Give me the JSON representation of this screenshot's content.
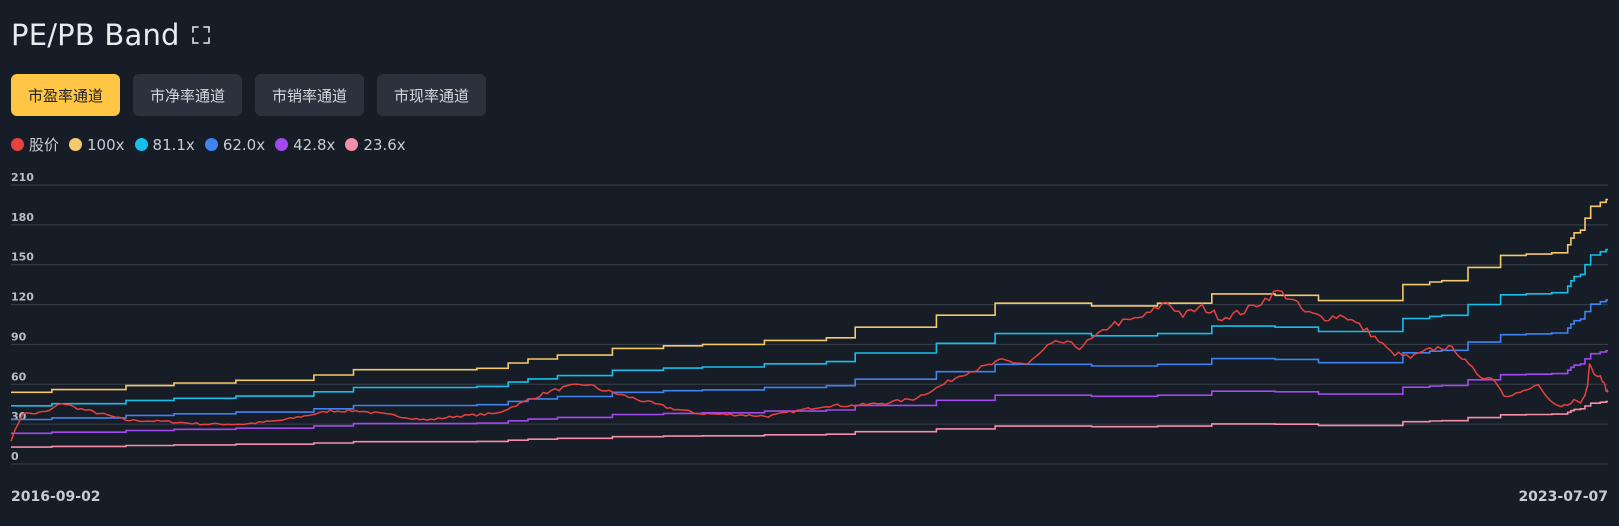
{
  "header": {
    "title": "PE/PB Band"
  },
  "tabs": [
    {
      "label": "市盈率通道",
      "active": true
    },
    {
      "label": "市净率通道",
      "active": false
    },
    {
      "label": "市销率通道",
      "active": false
    },
    {
      "label": "市现率通道",
      "active": false
    }
  ],
  "colors": {
    "background": "#161d27",
    "grid": "#3a414c",
    "active_tab": "#ffc545",
    "price": "#e8423f",
    "b100": "#f5c86a",
    "b81": "#16c0ea",
    "b62": "#3f83f0",
    "b43": "#a249ef",
    "b24": "#f58ea8"
  },
  "chart_data": {
    "type": "line",
    "x_start": "2016-09-02",
    "x_end": "2023-07-07",
    "ylim": [
      0,
      210
    ],
    "yticks": [
      0,
      30,
      60,
      90,
      120,
      150,
      180,
      210
    ],
    "legend": [
      {
        "name": "股价",
        "color": "#e8423f"
      },
      {
        "name": "100x",
        "color": "#f5c86a"
      },
      {
        "name": "81.1x",
        "color": "#16c0ea"
      },
      {
        "name": "62.0x",
        "color": "#3f83f0"
      },
      {
        "name": "42.8x",
        "color": "#a249ef"
      },
      {
        "name": "23.6x",
        "color": "#f58ea8"
      }
    ],
    "band_100x_steps": [
      [
        "2016-09-02",
        54
      ],
      [
        "2016-11-05",
        56
      ],
      [
        "2017-03-01",
        59
      ],
      [
        "2017-05-15",
        61
      ],
      [
        "2017-08-20",
        63
      ],
      [
        "2017-12-20",
        67
      ],
      [
        "2018-02-20",
        71
      ],
      [
        "2018-09-01",
        72
      ],
      [
        "2018-10-20",
        76
      ],
      [
        "2018-11-20",
        79
      ],
      [
        "2019-01-05",
        82
      ],
      [
        "2019-04-01",
        87
      ],
      [
        "2019-06-20",
        89
      ],
      [
        "2019-08-20",
        90
      ],
      [
        "2019-11-25",
        93
      ],
      [
        "2020-03-01",
        95
      ],
      [
        "2020-04-15",
        103
      ],
      [
        "2020-08-20",
        112
      ],
      [
        "2020-11-20",
        121
      ],
      [
        "2021-04-20",
        119
      ],
      [
        "2021-08-01",
        121
      ],
      [
        "2021-10-25",
        128
      ],
      [
        "2022-02-01",
        127
      ],
      [
        "2022-04-10",
        123
      ],
      [
        "2022-08-20",
        135
      ],
      [
        "2022-10-01",
        137
      ],
      [
        "2022-10-20",
        138
      ],
      [
        "2022-11-30",
        148
      ],
      [
        "2023-01-20",
        157
      ],
      [
        "2023-03-01",
        158
      ],
      [
        "2023-04-10",
        159
      ],
      [
        "2023-05-05",
        165
      ],
      [
        "2023-05-10",
        170
      ],
      [
        "2023-05-15",
        174
      ],
      [
        "2023-05-25",
        176
      ],
      [
        "2023-06-01",
        185
      ],
      [
        "2023-06-10",
        194
      ],
      [
        "2023-06-25",
        197
      ],
      [
        "2023-07-04",
        199
      ],
      [
        "2023-07-07",
        199
      ]
    ],
    "price": [
      [
        "2016-09-02",
        18
      ],
      [
        "2016-09-20",
        38
      ],
      [
        "2016-10-10",
        38
      ],
      [
        "2016-11-01",
        40
      ],
      [
        "2016-11-20",
        46
      ],
      [
        "2016-12-15",
        42
      ],
      [
        "2017-01-20",
        38
      ],
      [
        "2017-03-01",
        33
      ],
      [
        "2017-05-01",
        32
      ],
      [
        "2017-07-01",
        30
      ],
      [
        "2017-09-01",
        30
      ],
      [
        "2017-11-01",
        33
      ],
      [
        "2018-01-15",
        40
      ],
      [
        "2018-03-01",
        40
      ],
      [
        "2018-05-01",
        36
      ],
      [
        "2018-06-15",
        33
      ],
      [
        "2018-08-01",
        36
      ],
      [
        "2018-10-01",
        38
      ],
      [
        "2018-11-20",
        48
      ],
      [
        "2018-12-20",
        54
      ],
      [
        "2019-01-20",
        58
      ],
      [
        "2019-02-20",
        60
      ],
      [
        "2019-03-15",
        56
      ],
      [
        "2019-04-15",
        52
      ],
      [
        "2019-05-15",
        48
      ],
      [
        "2019-07-01",
        42
      ],
      [
        "2019-08-15",
        38
      ],
      [
        "2019-10-15",
        37
      ],
      [
        "2019-12-01",
        36
      ],
      [
        "2020-01-15",
        40
      ],
      [
        "2020-03-01",
        44
      ],
      [
        "2020-04-15",
        44
      ],
      [
        "2020-06-01",
        46
      ],
      [
        "2020-07-15",
        49
      ],
      [
        "2020-08-20",
        57
      ],
      [
        "2020-10-01",
        68
      ],
      [
        "2020-11-15",
        75
      ],
      [
        "2020-12-01",
        78
      ],
      [
        "2021-01-10",
        75
      ],
      [
        "2021-02-10",
        88
      ],
      [
        "2021-03-01",
        92
      ],
      [
        "2021-04-01",
        88
      ],
      [
        "2021-05-01",
        97
      ],
      [
        "2021-05-20",
        105
      ],
      [
        "2021-06-20",
        108
      ],
      [
        "2021-07-15",
        112
      ],
      [
        "2021-08-15",
        122
      ],
      [
        "2021-09-10",
        112
      ],
      [
        "2021-10-10",
        118
      ],
      [
        "2021-11-10",
        110
      ],
      [
        "2021-12-15",
        115
      ],
      [
        "2022-01-10",
        122
      ],
      [
        "2022-02-05",
        130
      ],
      [
        "2022-02-25",
        125
      ],
      [
        "2022-03-20",
        114
      ],
      [
        "2022-04-20",
        110
      ],
      [
        "2022-05-20",
        112
      ],
      [
        "2022-07-01",
        98
      ],
      [
        "2022-08-01",
        84
      ],
      [
        "2022-09-01",
        80
      ],
      [
        "2022-10-01",
        86
      ],
      [
        "2022-10-20",
        88
      ],
      [
        "2022-11-10",
        86
      ],
      [
        "2022-12-01",
        74
      ],
      [
        "2022-12-20",
        66
      ],
      [
        "2023-01-10",
        64
      ],
      [
        "2023-01-25",
        52
      ],
      [
        "2023-02-01",
        52
      ],
      [
        "2023-02-20",
        54
      ],
      [
        "2023-03-01",
        55
      ],
      [
        "2023-03-20",
        60
      ],
      [
        "2023-04-01",
        50
      ],
      [
        "2023-04-15",
        44
      ],
      [
        "2023-04-25",
        43
      ],
      [
        "2023-05-05",
        45
      ],
      [
        "2023-05-15",
        48
      ],
      [
        "2023-05-25",
        46
      ],
      [
        "2023-06-01",
        52
      ],
      [
        "2023-06-05",
        60
      ],
      [
        "2023-06-08",
        77
      ],
      [
        "2023-06-12",
        72
      ],
      [
        "2023-06-18",
        66
      ],
      [
        "2023-06-25",
        68
      ],
      [
        "2023-07-01",
        60
      ],
      [
        "2023-07-04",
        56
      ],
      [
        "2023-07-07",
        54
      ]
    ]
  }
}
